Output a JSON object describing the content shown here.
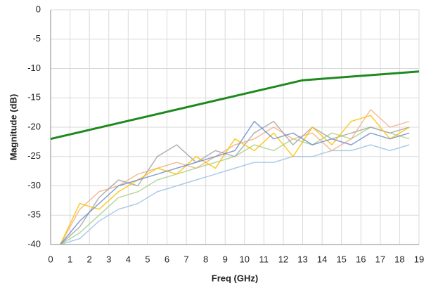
{
  "chart_data": {
    "type": "line",
    "xlabel": "Freq (GHz)",
    "ylabel": "Magnitude (dB)",
    "xlim": [
      0,
      19
    ],
    "ylim": [
      -40,
      0
    ],
    "xticks": [
      0,
      1,
      2,
      3,
      4,
      5,
      6,
      7,
      8,
      9,
      10,
      11,
      12,
      13,
      14,
      15,
      16,
      17,
      18,
      19
    ],
    "yticks": [
      0,
      -5,
      -10,
      -15,
      -20,
      -25,
      -30,
      -35,
      -40
    ],
    "grid": true,
    "x": [
      0.5,
      1.5,
      2.5,
      3.5,
      4.5,
      5.5,
      6.5,
      7.5,
      8.5,
      9.5,
      10.5,
      11.5,
      12.5,
      13.5,
      14.5,
      15.5,
      16.5,
      17.5,
      18.5
    ],
    "series": [
      {
        "color": "#9dc3e6",
        "values": [
          -40,
          -39,
          -36,
          -34,
          -33,
          -31,
          -30,
          -29,
          -28,
          -27,
          -26,
          -26,
          -25,
          -25,
          -24,
          -24,
          -23,
          -24,
          -23
        ]
      },
      {
        "color": "#a9d18e",
        "values": [
          -40,
          -38,
          -35,
          -32,
          -31,
          -29,
          -28,
          -27,
          -26,
          -25,
          -23,
          -24,
          -22,
          -23,
          -21,
          -22,
          -20,
          -21,
          -22
        ]
      },
      {
        "color": "#f4b183",
        "values": [
          -40,
          -34,
          -31,
          -30,
          -28,
          -27,
          -26,
          -27,
          -25,
          -23,
          -22,
          -20,
          -22,
          -21,
          -24,
          -22,
          -17,
          -20,
          -19
        ]
      },
      {
        "color": "#a5a5a5",
        "values": [
          -40,
          -37,
          -32,
          -29,
          -30,
          -25,
          -23,
          -26,
          -24,
          -25,
          -21,
          -19,
          -23,
          -20,
          -22,
          -21,
          -20,
          -21,
          -20
        ]
      },
      {
        "color": "#ffc000",
        "values": [
          -40,
          -33,
          -34,
          -31,
          -29,
          -27,
          -28,
          -25,
          -27,
          -22,
          -24,
          -21,
          -25,
          -20,
          -23,
          -19,
          -18,
          -22,
          -20
        ]
      },
      {
        "color": "#6f8fcf",
        "values": [
          -40,
          -36,
          -33,
          -30,
          -29,
          -28,
          -27,
          -26,
          -25,
          -24,
          -19,
          -22,
          -21,
          -23,
          -22,
          -23,
          -21,
          -22,
          -21
        ]
      },
      {
        "color": "#1e8a1e",
        "x": [
          0,
          13,
          19
        ],
        "values": [
          -22,
          -12,
          -10.5
        ]
      }
    ]
  }
}
